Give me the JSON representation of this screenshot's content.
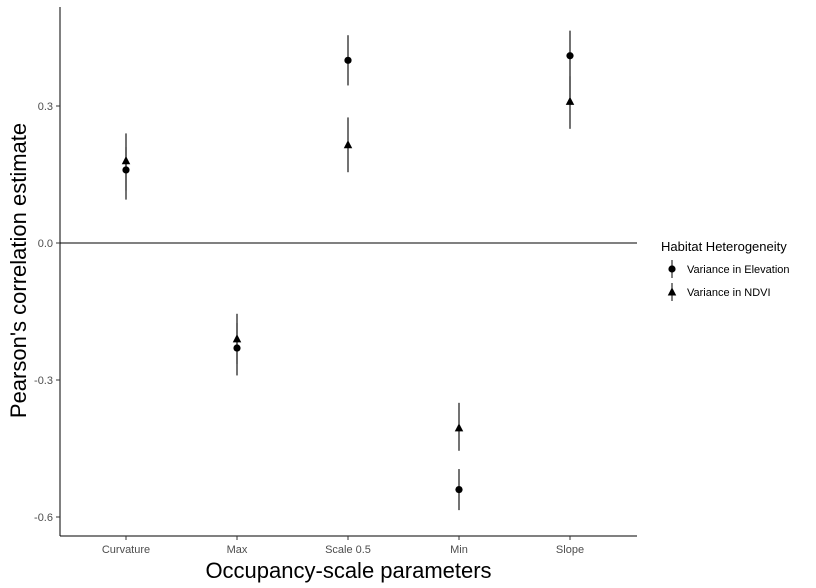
{
  "chart_data": {
    "type": "scatter",
    "xlabel": "Occupancy-scale parameters",
    "ylabel": "Pearson's correlation estimate",
    "categories": [
      "Curvature",
      "Max",
      "Scale 0.5",
      "Min",
      "Slope"
    ],
    "ylim": [
      -0.6,
      0.45
    ],
    "yticks": [
      -0.6,
      -0.3,
      0.0,
      0.3
    ],
    "ytick_labels": [
      "-0.6",
      "-0.3",
      "0.0",
      "0.3"
    ],
    "reference_line_y": 0.0,
    "grid": false,
    "legend": {
      "title": "Habitat Heterogeneity",
      "placement": "right"
    },
    "series": [
      {
        "name": "Variance in Elevation",
        "marker": "circle",
        "values": [
          0.16,
          -0.23,
          0.4,
          -0.54,
          0.41
        ],
        "lower": [
          0.095,
          -0.29,
          0.345,
          -0.585,
          0.315
        ],
        "upper": [
          0.21,
          -0.175,
          0.455,
          -0.495,
          0.465
        ]
      },
      {
        "name": "Variance in NDVI",
        "marker": "triangle",
        "values": [
          0.18,
          -0.21,
          0.215,
          -0.405,
          0.31
        ],
        "lower": [
          0.115,
          -0.265,
          0.155,
          -0.455,
          0.25
        ],
        "upper": [
          0.24,
          -0.155,
          0.275,
          -0.35,
          0.365
        ]
      }
    ]
  }
}
